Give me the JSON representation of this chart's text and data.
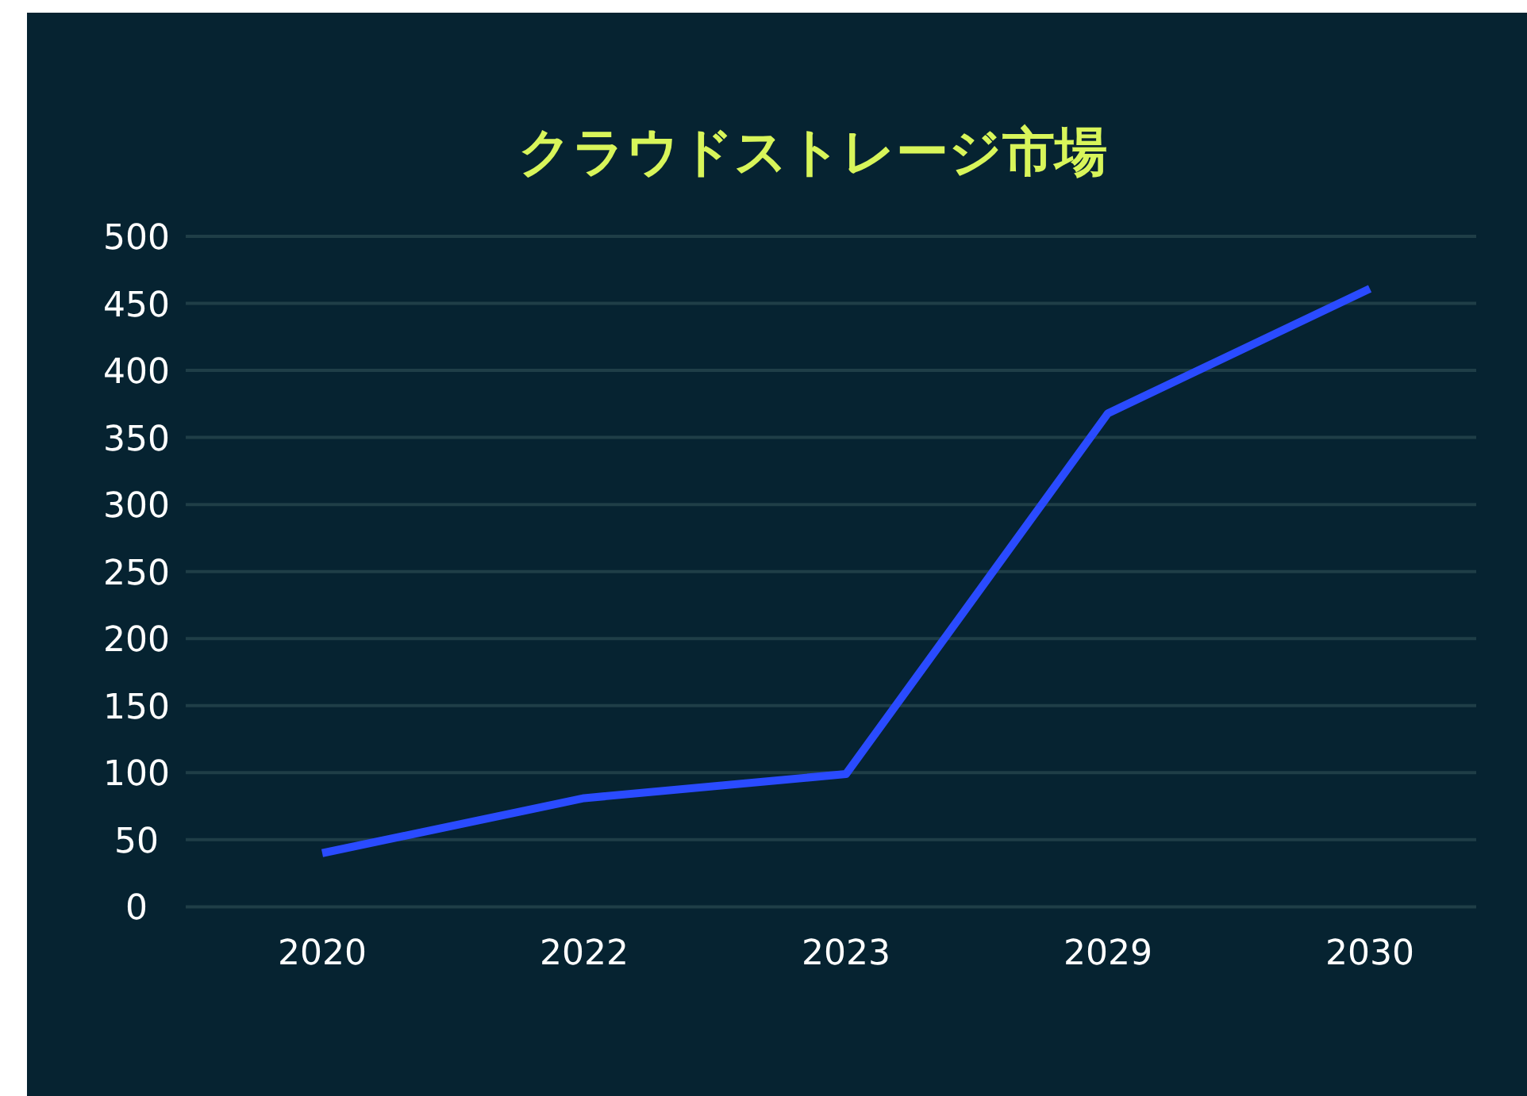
{
  "chart_data": {
    "type": "line",
    "title": "クラウドストレージ市場",
    "categories": [
      "2020",
      "2022",
      "2023",
      "2029",
      "2030"
    ],
    "series": [
      {
        "color": "#2a4bff",
        "values": [
          40,
          81,
          99,
          368,
          461
        ]
      }
    ],
    "ylim": [
      0,
      500
    ],
    "yticks": [
      0,
      50,
      100,
      150,
      200,
      250,
      300,
      350,
      400,
      450,
      500
    ],
    "grid": "y",
    "marker": "none",
    "line_style": "solid"
  }
}
